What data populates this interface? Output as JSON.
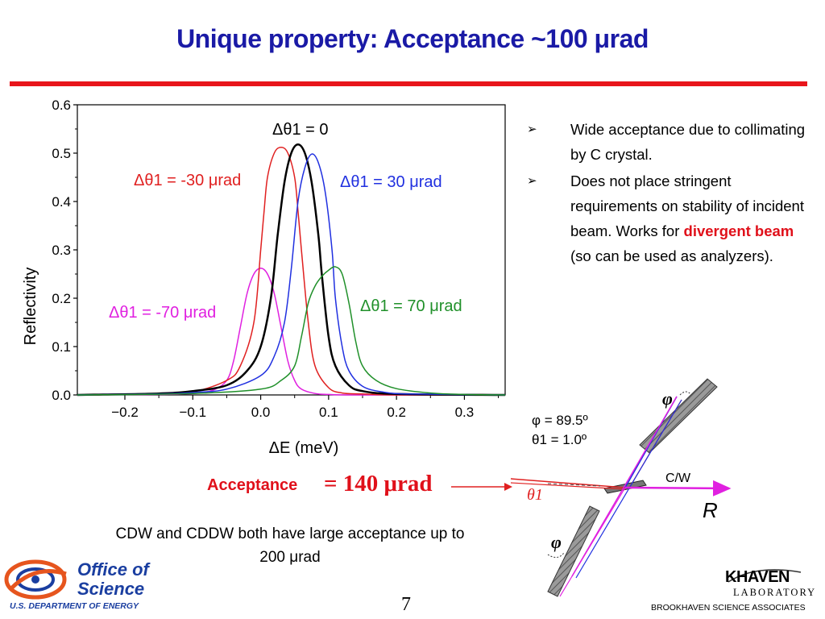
{
  "title": "Unique property: Acceptance ~100 μrad",
  "chart_data": {
    "type": "line",
    "xlabel": "ΔE (meV)",
    "ylabel": "Reflectivity",
    "xlim": [
      -0.27,
      0.36
    ],
    "ylim": [
      0,
      0.6
    ],
    "x_ticks": [
      -0.2,
      -0.1,
      0.0,
      0.1,
      0.2,
      0.3
    ],
    "x_tick_labels": [
      "−0.2",
      "−0.1",
      "0.0",
      "0.1",
      "0.2",
      "0.3"
    ],
    "y_ticks": [
      0.0,
      0.1,
      0.2,
      0.3,
      0.4,
      0.5,
      0.6
    ],
    "y_tick_labels": [
      "0.0",
      "0.1",
      "0.2",
      "0.3",
      "0.4",
      "0.5",
      "0.6"
    ],
    "grid": false,
    "series": [
      {
        "name": "Δθ1 = -70 μrad",
        "color": "#e020e0",
        "stroke_width": 1.5,
        "x": [
          -0.27,
          -0.15,
          -0.1,
          -0.07,
          -0.05,
          -0.04,
          -0.03,
          -0.02,
          -0.01,
          0.0,
          0.01,
          0.02,
          0.03,
          0.04,
          0.05,
          0.06,
          0.08,
          0.1,
          0.15,
          0.36
        ],
        "y": [
          0.0,
          0.001,
          0.003,
          0.01,
          0.03,
          0.07,
          0.14,
          0.21,
          0.25,
          0.262,
          0.25,
          0.21,
          0.14,
          0.07,
          0.03,
          0.012,
          0.003,
          0.001,
          0.0,
          0.0
        ]
      },
      {
        "name": "Δθ1 = -30 μrad",
        "color": "#e02020",
        "stroke_width": 1.5,
        "x": [
          -0.27,
          -0.15,
          -0.1,
          -0.05,
          -0.03,
          -0.01,
          0.0,
          0.005,
          0.01,
          0.02,
          0.03,
          0.04,
          0.05,
          0.055,
          0.06,
          0.07,
          0.08,
          0.1,
          0.12,
          0.15,
          0.2,
          0.36
        ],
        "y": [
          0.0,
          0.002,
          0.006,
          0.03,
          0.06,
          0.15,
          0.3,
          0.38,
          0.45,
          0.5,
          0.512,
          0.5,
          0.45,
          0.38,
          0.3,
          0.15,
          0.06,
          0.015,
          0.004,
          0.002,
          0.0,
          0.0
        ]
      },
      {
        "name": "Δθ1 = 0",
        "color": "#000000",
        "stroke_width": 2.5,
        "x": [
          -0.27,
          -0.15,
          -0.1,
          -0.05,
          -0.02,
          0.0,
          0.015,
          0.025,
          0.035,
          0.045,
          0.055,
          0.065,
          0.075,
          0.085,
          0.09,
          0.1,
          0.11,
          0.13,
          0.15,
          0.2,
          0.36
        ],
        "y": [
          0.0,
          0.003,
          0.008,
          0.02,
          0.05,
          0.1,
          0.2,
          0.33,
          0.44,
          0.5,
          0.518,
          0.5,
          0.44,
          0.33,
          0.25,
          0.12,
          0.06,
          0.02,
          0.008,
          0.002,
          0.0
        ]
      },
      {
        "name": "Δθ1 = 30 μrad",
        "color": "#2030e0",
        "stroke_width": 1.5,
        "x": [
          -0.27,
          -0.15,
          -0.1,
          -0.05,
          0.0,
          0.02,
          0.035,
          0.045,
          0.055,
          0.065,
          0.075,
          0.085,
          0.095,
          0.105,
          0.11,
          0.12,
          0.13,
          0.15,
          0.18,
          0.22,
          0.36
        ],
        "y": [
          0.0,
          0.002,
          0.005,
          0.012,
          0.04,
          0.08,
          0.15,
          0.26,
          0.4,
          0.47,
          0.498,
          0.48,
          0.42,
          0.3,
          0.2,
          0.1,
          0.05,
          0.018,
          0.006,
          0.002,
          0.0
        ]
      },
      {
        "name": "Δθ1 = 70 μrad",
        "color": "#20902a",
        "stroke_width": 1.5,
        "x": [
          -0.27,
          -0.1,
          0.0,
          0.03,
          0.05,
          0.06,
          0.07,
          0.08,
          0.09,
          0.1,
          0.11,
          0.12,
          0.13,
          0.14,
          0.15,
          0.17,
          0.2,
          0.25,
          0.3,
          0.36
        ],
        "y": [
          0.0,
          0.003,
          0.012,
          0.03,
          0.06,
          0.12,
          0.19,
          0.225,
          0.245,
          0.258,
          0.265,
          0.25,
          0.19,
          0.11,
          0.06,
          0.03,
          0.013,
          0.004,
          0.001,
          0.0
        ]
      }
    ],
    "annotations": [
      {
        "id": "zero",
        "text": "Δθ1 = 0",
        "color": "#000000"
      },
      {
        "id": "m30",
        "text": "Δθ1 = -30 μrad",
        "color": "#e02020"
      },
      {
        "id": "p30",
        "text": "Δθ1 = 30 μrad",
        "color": "#2030e0"
      },
      {
        "id": "m70",
        "text": "Δθ1 = -70 μrad",
        "color": "#e020e0"
      },
      {
        "id": "p70",
        "text": "Δθ1 = 70 μrad",
        "color": "#20902a"
      }
    ]
  },
  "bullets": {
    "items": [
      {
        "text": "Wide acceptance due to collimating by C crystal."
      },
      {
        "text_before": "Does not place stringent requirements on stability of incident beam. Works for ",
        "highlight": "divergent beam",
        "text_after": " (so can be used as analyzers)."
      }
    ]
  },
  "geometry": {
    "phi_angle": "φ = 89.5º",
    "theta_angle": "θ1 = 1.0º",
    "phi_symbol": "φ",
    "theta_symbol": "θ1",
    "crystal_label": "C/W",
    "beam_label": "R"
  },
  "acceptance": {
    "label": "Acceptance",
    "value": "= 140 μrad"
  },
  "note": "CDW and CDDW both have large acceptance up to 200 μrad",
  "page_number": "7",
  "footer": {
    "office_line1": "Office of",
    "office_line2": "Science",
    "department": "U.S. DEPARTMENT OF ENERGY",
    "lab_name": "HAVEN",
    "lab_sub": "LABORATORY",
    "associates": "BROOKHAVEN SCIENCE ASSOCIATES"
  }
}
